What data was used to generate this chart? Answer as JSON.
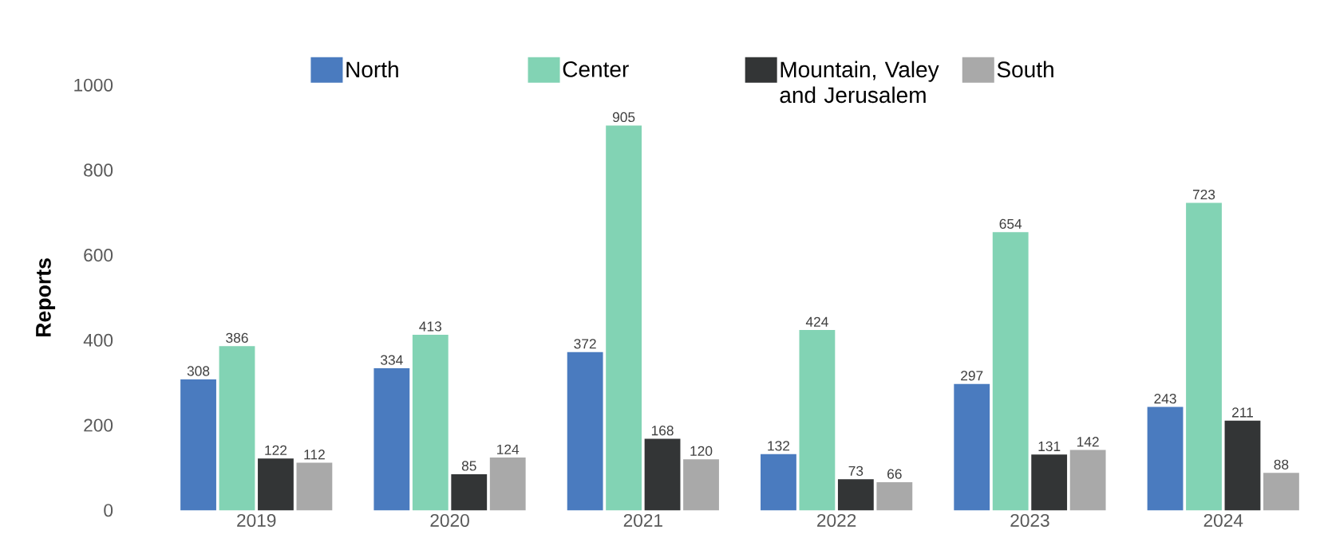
{
  "chart_data": {
    "type": "bar",
    "ylabel": "Reports",
    "categories": [
      "2019",
      "2020",
      "2021",
      "2022",
      "2023",
      "2024"
    ],
    "series": [
      {
        "name": "North",
        "color": "#4a7bbf",
        "values": [
          308,
          334,
          372,
          132,
          297,
          243
        ]
      },
      {
        "name": "Center",
        "color": "#82d3b4",
        "values": [
          386,
          413,
          905,
          424,
          654,
          723
        ]
      },
      {
        "name": "Mountain, Valey and Jerusalem",
        "color": "#333536",
        "values": [
          122,
          85,
          168,
          73,
          131,
          211
        ]
      },
      {
        "name": "South",
        "color": "#a9a9a9",
        "values": [
          112,
          124,
          120,
          66,
          142,
          88
        ]
      }
    ],
    "ylim": [
      0,
      1000
    ],
    "yticks": [
      0,
      200,
      400,
      600,
      800,
      1000
    ],
    "data_labels": true,
    "legend": "top"
  }
}
